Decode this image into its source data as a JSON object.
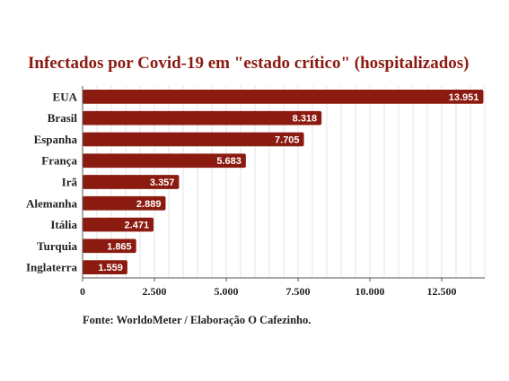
{
  "chart_data": {
    "type": "bar",
    "orientation": "horizontal",
    "title": "Infectados por Covid-19 em \"estado crítico\" (hospitalizados)",
    "categories": [
      "EUA",
      "Brasil",
      "Espanha",
      "França",
      "Irã",
      "Alemanha",
      "Itália",
      "Turquia",
      "Inglaterra"
    ],
    "values": [
      13951,
      8318,
      7705,
      5683,
      3357,
      2889,
      2471,
      1865,
      1559
    ],
    "value_labels": [
      "13.951",
      "8.318",
      "7.705",
      "5.683",
      "3.357",
      "2.889",
      "2.471",
      "1.865",
      "1.559"
    ],
    "x_ticks": [
      0,
      2500,
      5000,
      7500,
      10000,
      12500
    ],
    "x_tick_labels": [
      "0",
      "2.500",
      "5.000",
      "7.500",
      "10.000",
      "12.500"
    ],
    "xlim": [
      0,
      14000
    ],
    "grid": true,
    "colors": {
      "bar": "#8b1a10",
      "title": "#8b1a10",
      "grid": "#e6e6e6",
      "axis": "#555555"
    }
  },
  "footer": {
    "source": "Fonte: WorldoMeter / Elaboração O Cafezinho."
  }
}
